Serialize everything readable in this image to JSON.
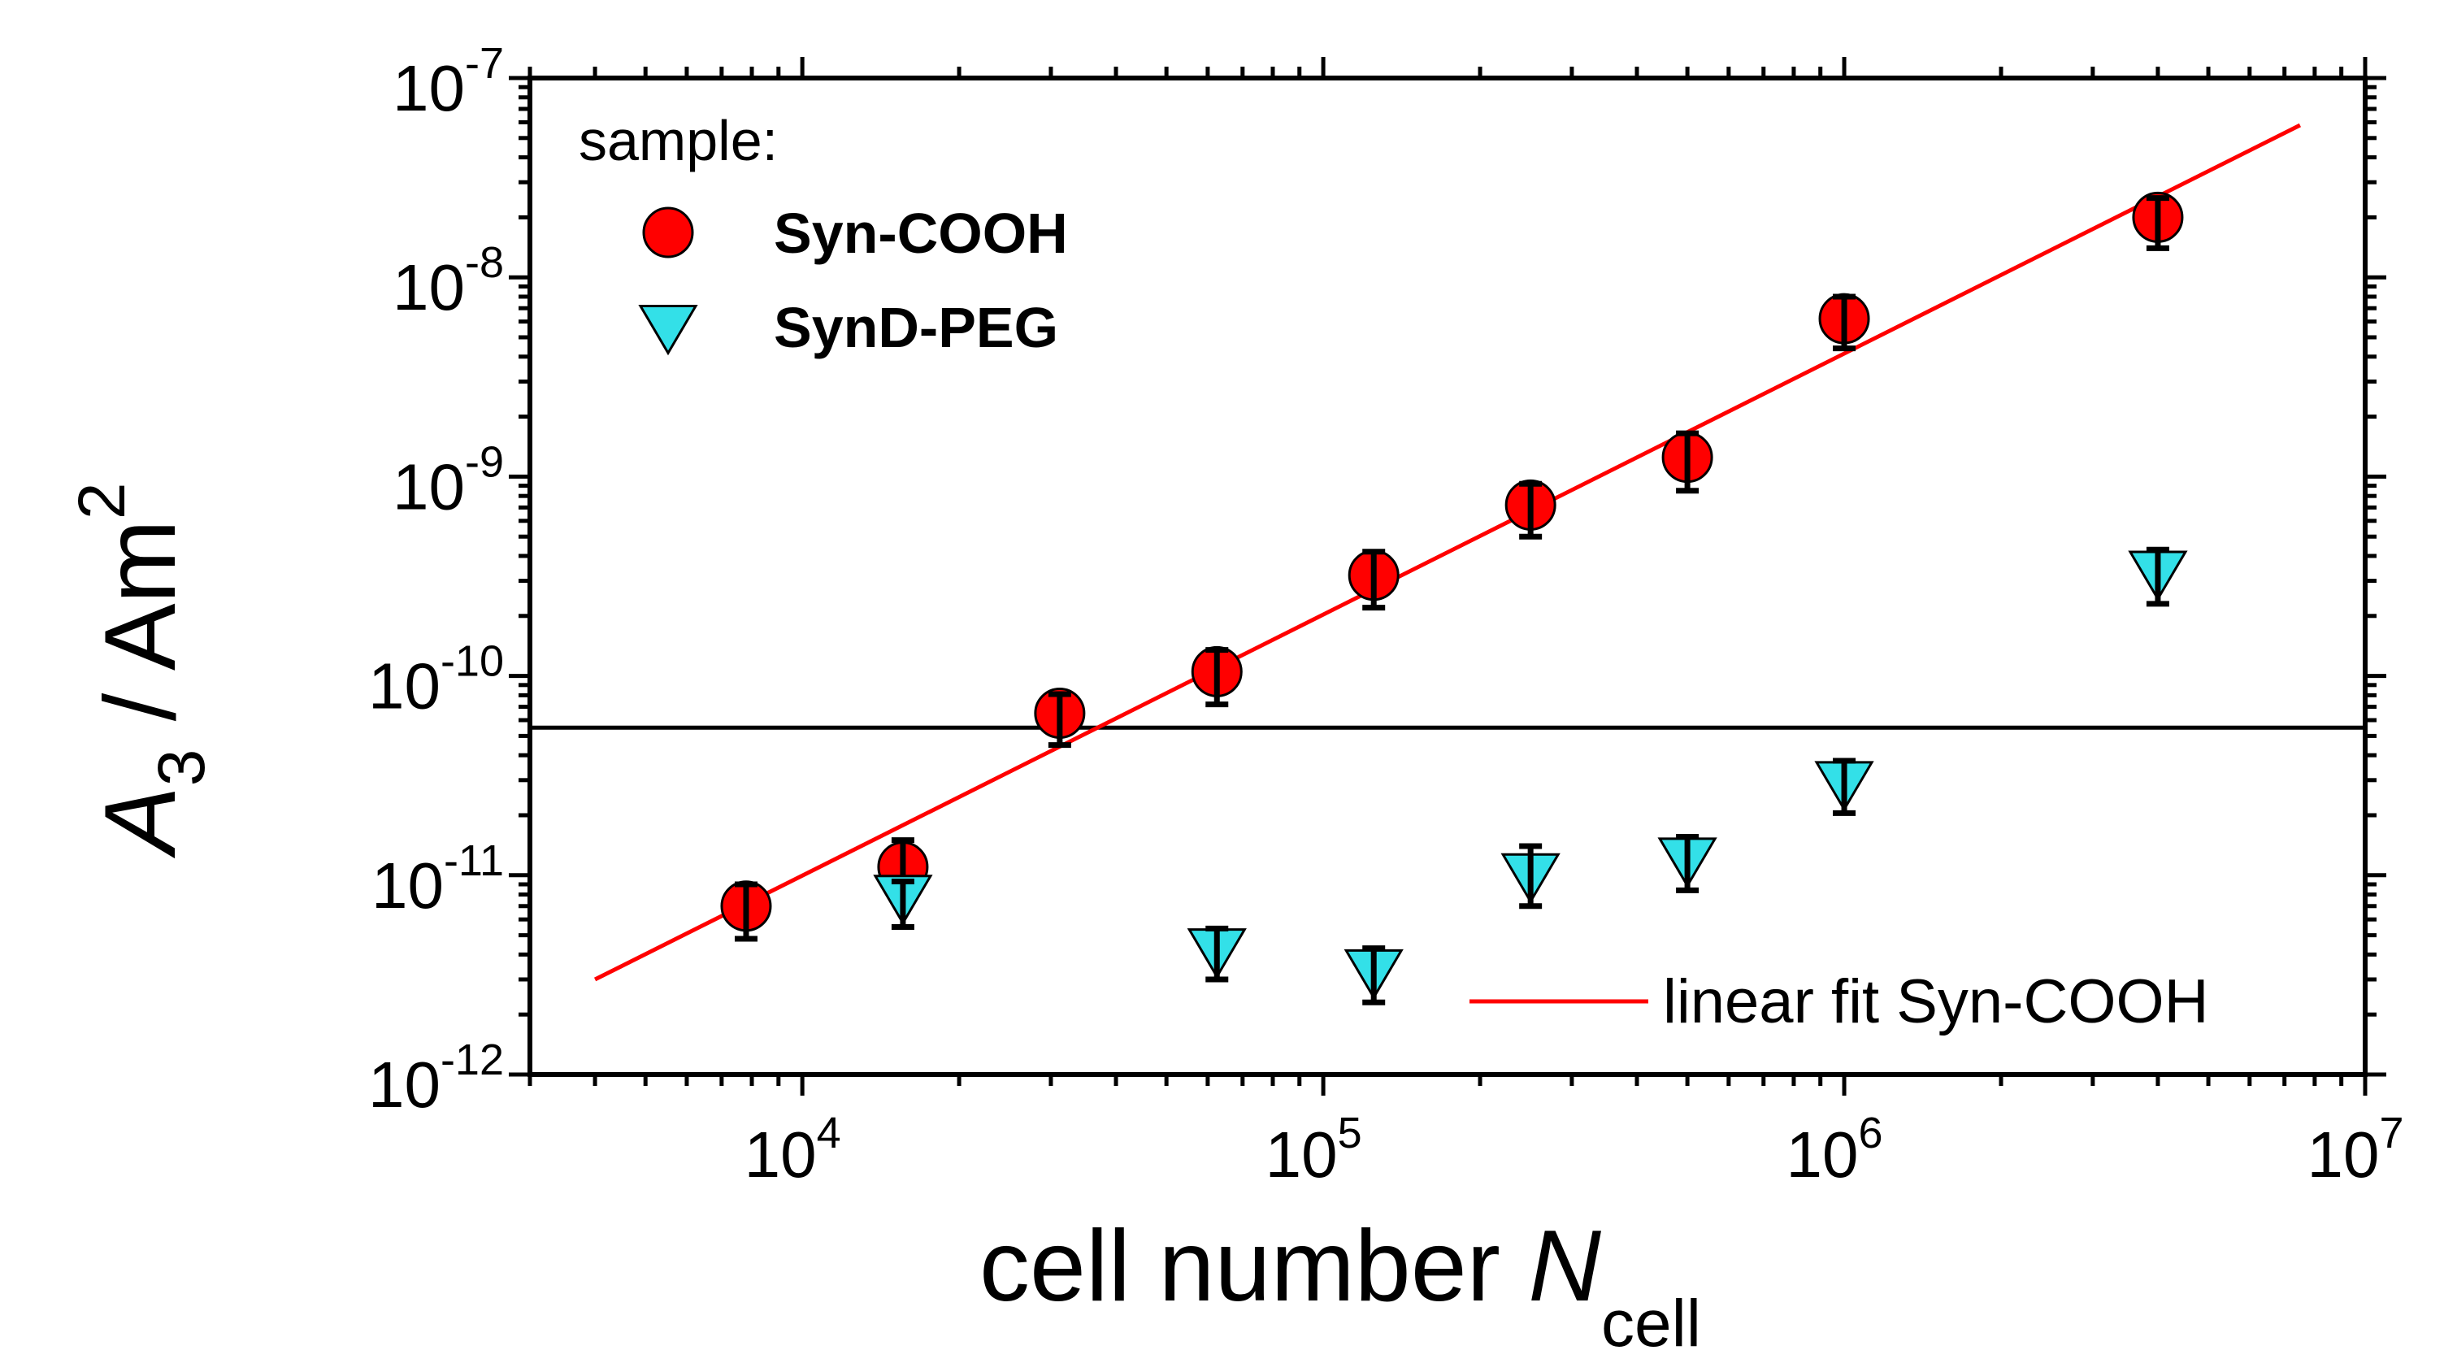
{
  "chart_data": {
    "type": "scatter",
    "x_scale": "log",
    "y_scale": "log",
    "xlim": [
      3000,
      10000000
    ],
    "ylim": [
      1e-12,
      1e-07
    ],
    "x_ticks": [
      {
        "value": 10000,
        "base": "10",
        "exp": "4"
      },
      {
        "value": 100000,
        "base": "10",
        "exp": "5"
      },
      {
        "value": 1000000,
        "base": "10",
        "exp": "6"
      },
      {
        "value": 10000000,
        "base": "10",
        "exp": "7"
      }
    ],
    "y_ticks": [
      {
        "value": 1e-12,
        "base": "10",
        "exp": "-12"
      },
      {
        "value": 1e-11,
        "base": "10",
        "exp": "-11"
      },
      {
        "value": 1e-10,
        "base": "10",
        "exp": "-10"
      },
      {
        "value": 1e-09,
        "base": "10",
        "exp": "-9"
      },
      {
        "value": 1e-08,
        "base": "10",
        "exp": "-8"
      },
      {
        "value": 1e-07,
        "base": "10",
        "exp": "-7"
      }
    ],
    "xlabel": {
      "main": "cell number ",
      "var": "N",
      "sub": "cell"
    },
    "ylabel": {
      "var": "A",
      "sub": "3",
      "rest": " / Am",
      "sup": "2"
    },
    "legend": {
      "title": "sample:",
      "position": "top-left"
    },
    "series": [
      {
        "name": "Syn-COOH",
        "marker": "circle",
        "color": "#ff0000",
        "points": [
          {
            "x": 7800,
            "y": 7e-12,
            "err_lo": 2.2e-12,
            "err_hi": 2e-12
          },
          {
            "x": 15600,
            "y": 1.1e-11,
            "err_lo": 3e-12,
            "err_hi": 4e-12
          },
          {
            "x": 31200,
            "y": 6.5e-11,
            "err_lo": 2e-11,
            "err_hi": 1.6e-11
          },
          {
            "x": 62500,
            "y": 1.05e-10,
            "err_lo": 3.3e-11,
            "err_hi": 3e-11
          },
          {
            "x": 125000,
            "y": 3.2e-10,
            "err_lo": 1e-10,
            "err_hi": 1e-10
          },
          {
            "x": 250000,
            "y": 7.2e-10,
            "err_lo": 2.2e-10,
            "err_hi": 2e-10
          },
          {
            "x": 500000,
            "y": 1.25e-09,
            "err_lo": 4e-10,
            "err_hi": 4e-10
          },
          {
            "x": 1000000,
            "y": 6.2e-09,
            "err_lo": 1.8e-09,
            "err_hi": 1.8e-09
          },
          {
            "x": 4000000,
            "y": 2e-08,
            "err_lo": 6e-09,
            "err_hi": 5e-09
          }
        ]
      },
      {
        "name": "SynD-PEG",
        "marker": "triangle-down",
        "color": "#33e0e8",
        "points": [
          {
            "x": 15600,
            "y": 7.8e-12,
            "err_lo": 2.3e-12,
            "err_hi": 1.5e-12
          },
          {
            "x": 62500,
            "y": 4.2e-12,
            "err_lo": 1.2e-12,
            "err_hi": 1.2e-12
          },
          {
            "x": 125000,
            "y": 3.3e-12,
            "err_lo": 1e-12,
            "err_hi": 1e-12
          },
          {
            "x": 250000,
            "y": 1e-11,
            "err_lo": 3e-12,
            "err_hi": 4e-12
          },
          {
            "x": 500000,
            "y": 1.2e-11,
            "err_lo": 3.6e-12,
            "err_hi": 3.6e-12
          },
          {
            "x": 1000000,
            "y": 2.9e-11,
            "err_lo": 8.5e-12,
            "err_hi": 8.5e-12
          },
          {
            "x": 4000000,
            "y": 3.3e-10,
            "err_lo": 1e-10,
            "err_hi": 1e-10
          }
        ]
      }
    ],
    "fit_line": {
      "label": "linear fit Syn-COOH",
      "color": "#ff0000",
      "x_start": 4000,
      "y_start": 3e-12,
      "x_end": 7500000,
      "y_end": 5.8e-08
    },
    "threshold_line": {
      "y": 5.5e-11,
      "color": "#000000"
    }
  }
}
